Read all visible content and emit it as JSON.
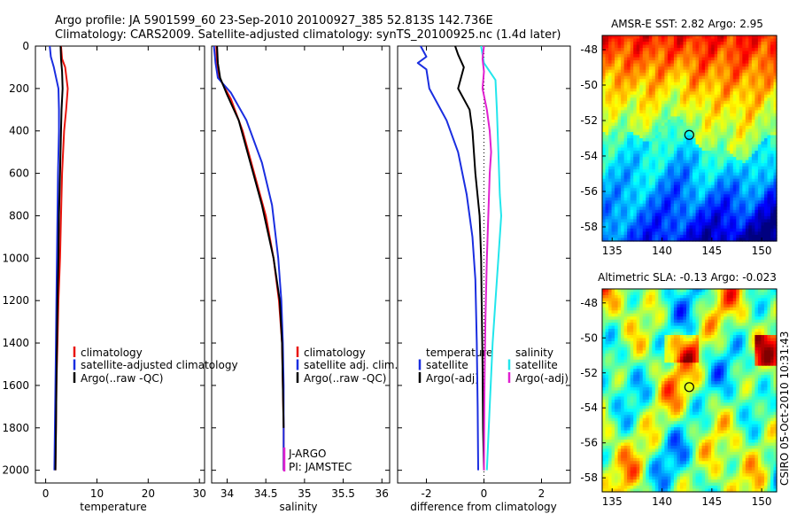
{
  "header": {
    "line1": "Argo profile: JA 5901599_60 23-Sep-2010 20100927_385 52.813S 142.736E",
    "line2": "Climatology: CARS2009. Satellite-adjusted climatology: synTS_20100925.nc (1.4d later)"
  },
  "credit": "CSIRO 05-Oct-2010 10:31:43",
  "colors": {
    "climatology": "#e8140c",
    "satellite": "#1a2ee0",
    "argo": "#000000",
    "satellite_salinity": "#22e6ec",
    "argo_adj": "#e020d0",
    "axis": "#000000"
  },
  "chart_data": [
    {
      "type": "line",
      "xlabel": "temperature",
      "ylabel": "",
      "xlim": [
        -2,
        31
      ],
      "ylim": [
        2060,
        0
      ],
      "xticks": [
        0,
        10,
        20,
        30
      ],
      "yticks": [
        0,
        200,
        400,
        600,
        800,
        1000,
        1200,
        1400,
        1600,
        1800,
        2000
      ],
      "legend": [
        "climatology",
        "satellite-adjusted climatology",
        "Argo(..raw -QC)"
      ],
      "series": [
        {
          "name": "climatology",
          "color_key": "climatology",
          "points": [
            [
              3.0,
              0
            ],
            [
              3.2,
              60
            ],
            [
              3.8,
              100
            ],
            [
              4.3,
              200
            ],
            [
              4.0,
              300
            ],
            [
              3.6,
              400
            ],
            [
              3.2,
              600
            ],
            [
              3.0,
              800
            ],
            [
              2.8,
              1000
            ],
            [
              2.5,
              1200
            ],
            [
              2.3,
              1400
            ],
            [
              2.1,
              1600
            ],
            [
              2.0,
              1800
            ],
            [
              1.9,
              2000
            ]
          ]
        },
        {
          "name": "satellite-adjusted climatology",
          "color_key": "satellite",
          "points": [
            [
              0.8,
              0
            ],
            [
              1.0,
              50
            ],
            [
              1.6,
              100
            ],
            [
              2.5,
              200
            ],
            [
              2.6,
              300
            ],
            [
              2.6,
              400
            ],
            [
              2.4,
              600
            ],
            [
              2.3,
              800
            ],
            [
              2.2,
              1000
            ],
            [
              2.1,
              1200
            ],
            [
              2.0,
              1400
            ],
            [
              1.9,
              1600
            ],
            [
              1.8,
              1800
            ],
            [
              1.7,
              2000
            ]
          ]
        },
        {
          "name": "Argo(..raw -QC)",
          "color_key": "argo",
          "points": [
            [
              2.9,
              0
            ],
            [
              3.0,
              60
            ],
            [
              3.2,
              120
            ],
            [
              3.3,
              200
            ],
            [
              3.1,
              300
            ],
            [
              3.0,
              400
            ],
            [
              2.8,
              600
            ],
            [
              2.6,
              800
            ],
            [
              2.5,
              1000
            ],
            [
              2.3,
              1200
            ],
            [
              2.2,
              1400
            ],
            [
              2.1,
              1600
            ],
            [
              2.0,
              1800
            ],
            [
              1.9,
              2000
            ]
          ]
        }
      ]
    },
    {
      "type": "line",
      "xlabel": "salinity",
      "ylabel": "",
      "xlim": [
        33.8,
        36.1
      ],
      "ylim": [
        2060,
        0
      ],
      "xticks": [
        34,
        34.5,
        35,
        35.5,
        36
      ],
      "legend": [
        "climatology",
        "satellite adj. clim.",
        "Argo(..raw -QC)"
      ],
      "annotations": [
        "J-ARGO",
        "PI: JAMSTEC"
      ],
      "series": [
        {
          "name": "climatology",
          "color_key": "climatology",
          "points": [
            [
              33.86,
              0
            ],
            [
              33.87,
              80
            ],
            [
              33.9,
              150
            ],
            [
              34.05,
              250
            ],
            [
              34.2,
              400
            ],
            [
              34.35,
              600
            ],
            [
              34.5,
              800
            ],
            [
              34.6,
              1000
            ],
            [
              34.67,
              1200
            ],
            [
              34.71,
              1400
            ],
            [
              34.72,
              1600
            ],
            [
              34.73,
              1800
            ],
            [
              34.73,
              2000
            ]
          ]
        },
        {
          "name": "satellite adj. clim.",
          "color_key": "satellite",
          "points": [
            [
              33.83,
              0
            ],
            [
              33.85,
              80
            ],
            [
              33.88,
              150
            ],
            [
              34.05,
              220
            ],
            [
              34.25,
              350
            ],
            [
              34.45,
              550
            ],
            [
              34.58,
              750
            ],
            [
              34.66,
              1000
            ],
            [
              34.7,
              1200
            ],
            [
              34.72,
              1400
            ],
            [
              34.73,
              1600
            ],
            [
              34.73,
              1800
            ],
            [
              34.73,
              2000
            ]
          ]
        },
        {
          "name": "Argo(..raw -QC)",
          "color_key": "argo",
          "points": [
            [
              33.87,
              0
            ],
            [
              33.88,
              80
            ],
            [
              33.91,
              150
            ],
            [
              34.0,
              230
            ],
            [
              34.15,
              350
            ],
            [
              34.3,
              550
            ],
            [
              34.45,
              750
            ],
            [
              34.6,
              1000
            ],
            [
              34.68,
              1200
            ],
            [
              34.71,
              1400
            ],
            [
              34.72,
              1600
            ],
            [
              34.73,
              1800
            ]
          ]
        }
      ]
    },
    {
      "type": "line",
      "xlabel": "difference from climatology",
      "ylabel": "",
      "xlim": [
        -3,
        3
      ],
      "ylim": [
        2060,
        0
      ],
      "xticks": [
        -2,
        0,
        2
      ],
      "legend_left": [
        "temperature",
        "satellite",
        "Argo(-adj)"
      ],
      "legend_right": [
        "salinity",
        "satellite",
        "Argo(-adj)"
      ],
      "series": [
        {
          "name": "satellite",
          "group": "temperature",
          "color_key": "satellite",
          "points": [
            [
              -2.2,
              0
            ],
            [
              -2.0,
              50
            ],
            [
              -2.3,
              80
            ],
            [
              -2.0,
              110
            ],
            [
              -1.9,
              200
            ],
            [
              -1.3,
              350
            ],
            [
              -0.9,
              500
            ],
            [
              -0.6,
              700
            ],
            [
              -0.4,
              900
            ],
            [
              -0.3,
              1100
            ],
            [
              -0.25,
              1400
            ],
            [
              -0.22,
              1700
            ],
            [
              -0.2,
              2000
            ]
          ]
        },
        {
          "name": "Argo(-adj)",
          "group": "temperature",
          "color_key": "argo",
          "points": [
            [
              -1.0,
              0
            ],
            [
              -0.9,
              40
            ],
            [
              -0.7,
              100
            ],
            [
              -0.9,
              200
            ],
            [
              -0.5,
              300
            ],
            [
              -0.4,
              400
            ],
            [
              -0.3,
              600
            ],
            [
              -0.15,
              800
            ],
            [
              -0.1,
              1000
            ],
            [
              -0.08,
              1200
            ],
            [
              -0.05,
              1500
            ],
            [
              -0.03,
              1800
            ],
            [
              0.0,
              2000
            ]
          ]
        },
        {
          "name": "satellite",
          "group": "salinity",
          "color_key": "satellite_salinity",
          "points": [
            [
              -0.1,
              0
            ],
            [
              -0.05,
              40
            ],
            [
              0.0,
              80
            ],
            [
              0.4,
              160
            ],
            [
              0.45,
              300
            ],
            [
              0.5,
              500
            ],
            [
              0.55,
              700
            ],
            [
              0.6,
              800
            ],
            [
              0.5,
              1000
            ],
            [
              0.4,
              1200
            ],
            [
              0.3,
              1400
            ],
            [
              0.2,
              1700
            ],
            [
              0.1,
              2000
            ]
          ]
        },
        {
          "name": "Argo(-adj)",
          "group": "salinity",
          "color_key": "argo_adj",
          "points": [
            [
              0.0,
              0
            ],
            [
              -0.05,
              60
            ],
            [
              0.0,
              120
            ],
            [
              -0.05,
              200
            ],
            [
              0.1,
              300
            ],
            [
              0.2,
              400
            ],
            [
              0.25,
              500
            ],
            [
              0.2,
              600
            ],
            [
              0.15,
              800
            ],
            [
              0.1,
              1000
            ],
            [
              0.05,
              1300
            ],
            [
              0.02,
              1600
            ],
            [
              0.0,
              2000
            ]
          ]
        }
      ]
    },
    {
      "type": "heatmap",
      "title": "AMSR-E SST: 2.82 Argo: 2.95",
      "xlim": [
        134,
        151.5
      ],
      "ylim": [
        -58.8,
        -47.2
      ],
      "xticks": [
        135,
        140,
        145,
        150
      ],
      "yticks": [
        -48,
        -50,
        -52,
        -54,
        -56,
        -58
      ],
      "marker": {
        "lon": 142.736,
        "lat": -52.813
      }
    },
    {
      "type": "heatmap",
      "title": "Altimetric SLA: -0.13 Argo: -0.023",
      "xlim": [
        134,
        151.5
      ],
      "ylim": [
        -58.8,
        -47.2
      ],
      "xticks": [
        135,
        140,
        145,
        150
      ],
      "yticks": [
        -48,
        -50,
        -52,
        -54,
        -56,
        -58
      ],
      "marker": {
        "lon": 142.736,
        "lat": -52.813
      }
    }
  ]
}
